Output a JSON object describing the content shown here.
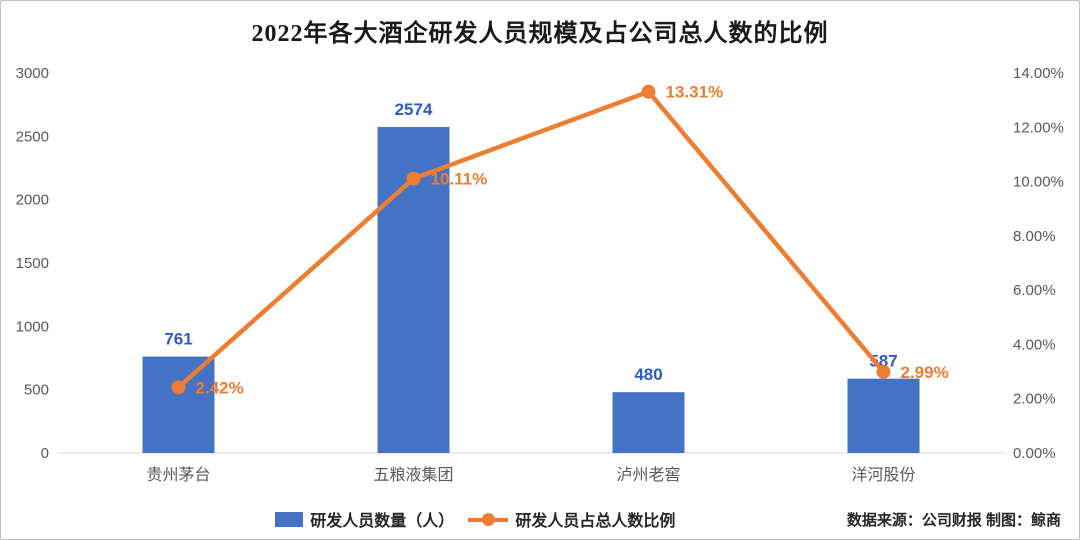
{
  "chart_data": {
    "type": "bar+line",
    "title": "2022年各大酒企研发人员规模及占公司总人数的比例",
    "categories": [
      "贵州茅台",
      "五粮液集团",
      "泸州老窖",
      "洋河股份"
    ],
    "series": [
      {
        "name": "研发人员数量（人）",
        "type": "bar",
        "axis": "left",
        "color": "#4472C4",
        "values": [
          761,
          2574,
          480,
          587
        ],
        "labels": [
          "761",
          "2574",
          "480",
          "587"
        ]
      },
      {
        "name": "研发人员占总人数比例",
        "type": "line",
        "axis": "right",
        "color": "#ED7D31",
        "values": [
          2.42,
          10.11,
          13.31,
          2.99
        ],
        "labels": [
          "2.42%",
          "10.11%",
          "13.31%",
          "2.99%"
        ]
      }
    ],
    "left_axis": {
      "min": 0,
      "max": 3000,
      "step": 500,
      "tick_labels": [
        "0",
        "500",
        "1000",
        "1500",
        "2000",
        "2500",
        "3000"
      ]
    },
    "right_axis": {
      "min": 0,
      "max": 14,
      "step": 2,
      "tick_labels": [
        "0.00%",
        "2.00%",
        "4.00%",
        "6.00%",
        "8.00%",
        "10.00%",
        "12.00%",
        "14.00%"
      ]
    },
    "grid": false,
    "legend_position": "bottom"
  },
  "colors": {
    "bar": "#4472C4",
    "line": "#ED7D31",
    "bar_label": "#2E5BC6",
    "line_label": "#ED7D31",
    "axis_text": "#595959",
    "axis_line": "#D9D9D9"
  },
  "footer": {
    "source_note": "数据来源：公司财报  制图：鲸商"
  }
}
